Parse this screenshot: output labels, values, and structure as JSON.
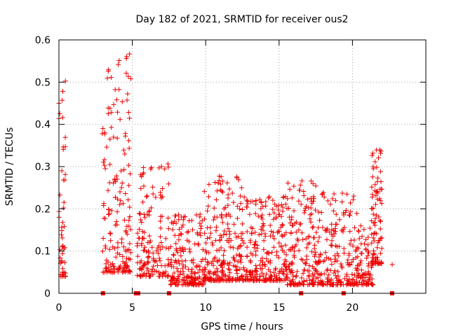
{
  "chart_data": {
    "type": "scatter",
    "title": "Day 182 of 2021, SRMTID for receiver ous2",
    "xlabel": "GPS time / hours",
    "ylabel": "SRMTID / TECUs",
    "xlim": [
      0,
      25
    ],
    "ylim": [
      0,
      0.6
    ],
    "xticks": [
      "0",
      "5",
      "10",
      "15",
      "20"
    ],
    "yticks": [
      "0",
      "0.1",
      "0.2",
      "0.3",
      "0.4",
      "0.5",
      "0.6"
    ],
    "grid": true,
    "marker": "+",
    "color": "#ee0000",
    "gap_markers_x": [
      3.0,
      5.25,
      5.4,
      7.5,
      16.5,
      19.4,
      22.7
    ],
    "clusters": [
      {
        "x": [
          0.0,
          0.45
        ],
        "y": [
          0.04,
          0.51
        ],
        "n": 50
      },
      {
        "x": [
          2.95,
          4.9
        ],
        "y": [
          0.05,
          0.57
        ],
        "n": 180
      },
      {
        "x": [
          5.3,
          7.5
        ],
        "y": [
          0.04,
          0.31
        ],
        "n": 150
      },
      {
        "x": [
          7.6,
          9.9
        ],
        "y": [
          0.02,
          0.19
        ],
        "n": 190
      },
      {
        "x": [
          9.9,
          12.5
        ],
        "y": [
          0.03,
          0.28
        ],
        "n": 230
      },
      {
        "x": [
          12.5,
          15.5
        ],
        "y": [
          0.03,
          0.23
        ],
        "n": 240
      },
      {
        "x": [
          15.5,
          17.5
        ],
        "y": [
          0.02,
          0.27
        ],
        "n": 170
      },
      {
        "x": [
          17.5,
          20.3
        ],
        "y": [
          0.02,
          0.24
        ],
        "n": 200
      },
      {
        "x": [
          20.3,
          21.4
        ],
        "y": [
          0.02,
          0.16
        ],
        "n": 80
      },
      {
        "x": [
          21.3,
          22.0
        ],
        "y": [
          0.07,
          0.34
        ],
        "n": 90
      },
      {
        "x": [
          22.7,
          22.75
        ],
        "y": [
          0.068,
          0.07
        ],
        "n": 1
      }
    ]
  }
}
